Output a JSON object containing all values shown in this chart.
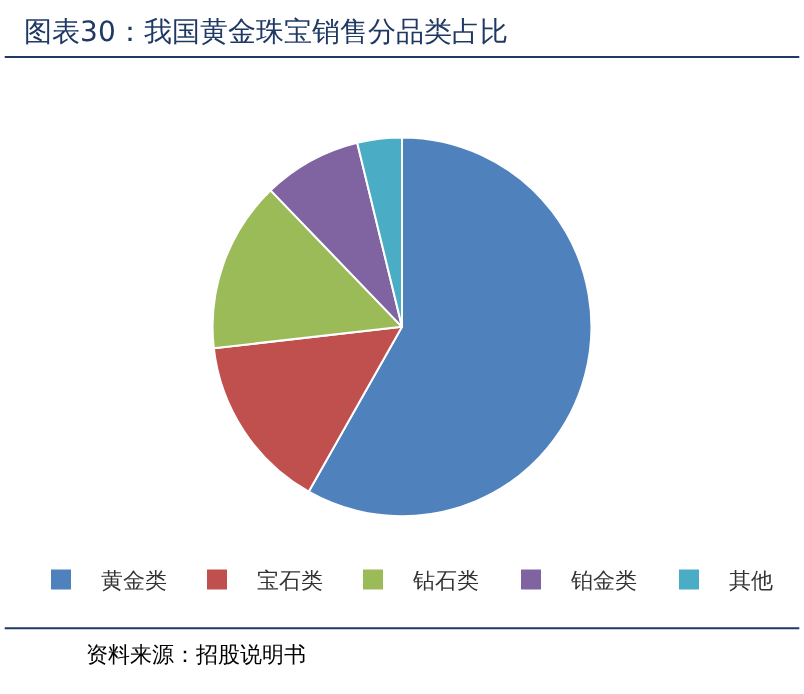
{
  "chart_data": {
    "type": "pie",
    "title": "图表30：我国黄金珠宝销售分品类占比",
    "categories": [
      "黄金类",
      "宝石类",
      "钻石类",
      "铂金类",
      "其他"
    ],
    "values": [
      58.2,
      15,
      14.6,
      8.4,
      3.8
    ],
    "colors": [
      "#4f81bd",
      "#c0504d",
      "#9bbb59",
      "#8064a2",
      "#4bacc6"
    ],
    "legend": "bottom",
    "annotations": [
      "资料来源：招股说明书"
    ]
  }
}
